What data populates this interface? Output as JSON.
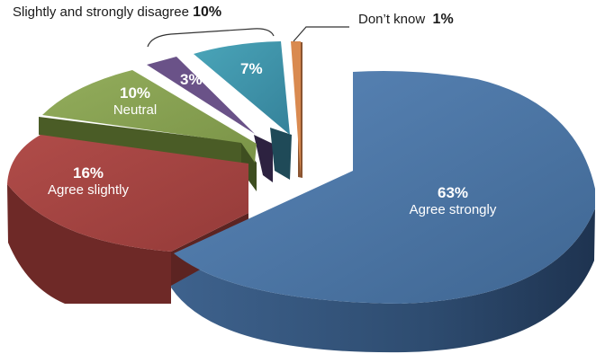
{
  "chart_data": {
    "type": "pie",
    "style": "3d-exploded",
    "slices": [
      {
        "label": "Agree strongly",
        "value": 63,
        "value_label": "63%",
        "color": "#46709F"
      },
      {
        "label": "Agree slightly",
        "value": 16,
        "value_label": "16%",
        "color": "#A0403E"
      },
      {
        "label": "Neutral",
        "value": 10,
        "value_label": "10%",
        "color": "#839C4F"
      },
      {
        "label": "",
        "value": 3,
        "value_label": "3%",
        "color": "#6A5288"
      },
      {
        "label": "",
        "value": 7,
        "value_label": "7%",
        "color": "#3F94A8"
      },
      {
        "label": "Don’t know",
        "value": 1,
        "value_label": "1%",
        "color": "#D98A50"
      }
    ],
    "annotations": {
      "disagree_group": {
        "text": "Slightly and strongly disagree",
        "value_label": "10%"
      },
      "dont_know": {
        "text": "Don’t know",
        "value_label": "1%"
      }
    }
  }
}
